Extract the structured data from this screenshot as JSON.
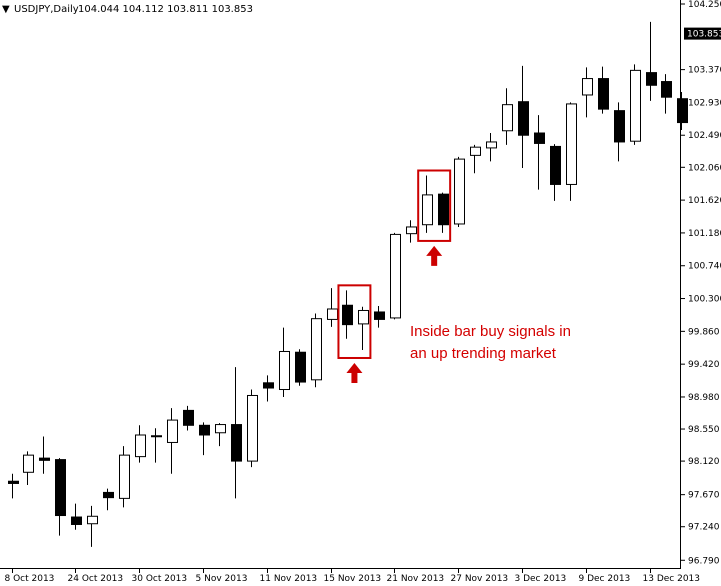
{
  "header": {
    "symbol": "USDJPY,Daily",
    "ohlc": "104.044 104.112 103.811 103.853",
    "arrow_glyph": "▼"
  },
  "chart_data": {
    "type": "candlestick",
    "ylim": [
      96.74,
      104.25
    ],
    "y_ticks": [
      "104.250",
      "103.370",
      "102.930",
      "102.490",
      "102.060",
      "101.620",
      "101.180",
      "100.740",
      "100.300",
      "99.860",
      "99.420",
      "98.980",
      "98.550",
      "98.120",
      "97.670",
      "97.240",
      "96.790"
    ],
    "current_price": "103.853",
    "x_labels": [
      "8 Oct 2013",
      "24 Oct 2013",
      "30 Oct 2013",
      "5 Nov 2013",
      "11 Nov 2013",
      "15 Nov 2013",
      "21 Nov 2013",
      "27 Nov 2013",
      "3 Dec 2013",
      "9 Dec 2013",
      "13 Dec 2013"
    ],
    "x_label_slots": [
      0,
      4,
      8,
      12,
      16,
      20,
      24,
      28,
      32,
      36,
      40
    ],
    "bullish_color": "#ffffff",
    "bearish_color": "#000000",
    "candles": [
      {
        "o": 97.85,
        "h": 97.95,
        "l": 97.62,
        "c": 97.82
      },
      {
        "o": 97.97,
        "h": 98.25,
        "l": 97.8,
        "c": 98.2
      },
      {
        "o": 98.16,
        "h": 98.45,
        "l": 97.95,
        "c": 98.13
      },
      {
        "o": 98.14,
        "h": 98.16,
        "l": 97.12,
        "c": 97.39
      },
      {
        "o": 97.37,
        "h": 97.55,
        "l": 97.2,
        "c": 97.27
      },
      {
        "o": 97.28,
        "h": 97.52,
        "l": 96.97,
        "c": 97.38
      },
      {
        "o": 97.7,
        "h": 97.75,
        "l": 97.46,
        "c": 97.63
      },
      {
        "o": 97.62,
        "h": 98.32,
        "l": 97.5,
        "c": 98.2
      },
      {
        "o": 98.18,
        "h": 98.6,
        "l": 98.1,
        "c": 98.47
      },
      {
        "o": 98.46,
        "h": 98.56,
        "l": 98.1,
        "c": 98.45
      },
      {
        "o": 98.37,
        "h": 98.83,
        "l": 97.95,
        "c": 98.67
      },
      {
        "o": 98.8,
        "h": 98.86,
        "l": 98.53,
        "c": 98.6
      },
      {
        "o": 98.6,
        "h": 98.64,
        "l": 98.2,
        "c": 98.47
      },
      {
        "o": 98.5,
        "h": 98.63,
        "l": 98.32,
        "c": 98.61
      },
      {
        "o": 98.61,
        "h": 99.38,
        "l": 97.62,
        "c": 98.12
      },
      {
        "o": 98.12,
        "h": 99.08,
        "l": 98.04,
        "c": 99.0
      },
      {
        "o": 99.17,
        "h": 99.27,
        "l": 98.92,
        "c": 99.1
      },
      {
        "o": 99.08,
        "h": 99.91,
        "l": 98.98,
        "c": 99.59
      },
      {
        "o": 99.58,
        "h": 99.62,
        "l": 99.13,
        "c": 99.18
      },
      {
        "o": 99.21,
        "h": 100.1,
        "l": 99.11,
        "c": 100.03
      },
      {
        "o": 100.02,
        "h": 100.44,
        "l": 99.92,
        "c": 100.16
      },
      {
        "o": 100.21,
        "h": 100.41,
        "l": 99.76,
        "c": 99.95
      },
      {
        "o": 99.96,
        "h": 100.19,
        "l": 99.61,
        "c": 100.14
      },
      {
        "o": 100.12,
        "h": 100.2,
        "l": 99.91,
        "c": 100.02
      },
      {
        "o": 100.04,
        "h": 101.18,
        "l": 100.02,
        "c": 101.16
      },
      {
        "o": 101.17,
        "h": 101.35,
        "l": 101.05,
        "c": 101.26
      },
      {
        "o": 101.29,
        "h": 101.95,
        "l": 101.18,
        "c": 101.69
      },
      {
        "o": 101.7,
        "h": 101.72,
        "l": 101.18,
        "c": 101.29
      },
      {
        "o": 101.3,
        "h": 102.2,
        "l": 101.26,
        "c": 102.17
      },
      {
        "o": 102.22,
        "h": 102.36,
        "l": 101.98,
        "c": 102.33
      },
      {
        "o": 102.32,
        "h": 102.52,
        "l": 102.14,
        "c": 102.4
      },
      {
        "o": 102.55,
        "h": 103.12,
        "l": 102.36,
        "c": 102.9
      },
      {
        "o": 102.94,
        "h": 103.42,
        "l": 102.05,
        "c": 102.49
      },
      {
        "o": 102.52,
        "h": 102.76,
        "l": 101.76,
        "c": 102.38
      },
      {
        "o": 102.34,
        "h": 102.37,
        "l": 101.61,
        "c": 101.83
      },
      {
        "o": 101.83,
        "h": 102.93,
        "l": 101.61,
        "c": 102.91
      },
      {
        "o": 103.03,
        "h": 103.4,
        "l": 102.73,
        "c": 103.25
      },
      {
        "o": 103.25,
        "h": 103.41,
        "l": 102.78,
        "c": 102.84
      },
      {
        "o": 102.82,
        "h": 102.93,
        "l": 102.14,
        "c": 102.4
      },
      {
        "o": 102.41,
        "h": 103.44,
        "l": 102.36,
        "c": 103.36
      },
      {
        "o": 103.33,
        "h": 104.01,
        "l": 102.95,
        "c": 103.16
      },
      {
        "o": 103.21,
        "h": 103.31,
        "l": 102.78,
        "c": 103.0
      },
      {
        "o": 102.98,
        "h": 103.07,
        "l": 102.56,
        "c": 102.66
      }
    ],
    "highlight_boxes": [
      {
        "first": 21,
        "last": 22,
        "arrow": true
      },
      {
        "first": 26,
        "last": 27,
        "arrow": true
      }
    ],
    "annotation": [
      "Inside bar buy signals in",
      "an up trending market"
    ],
    "highlight_color": "#cc0000"
  }
}
